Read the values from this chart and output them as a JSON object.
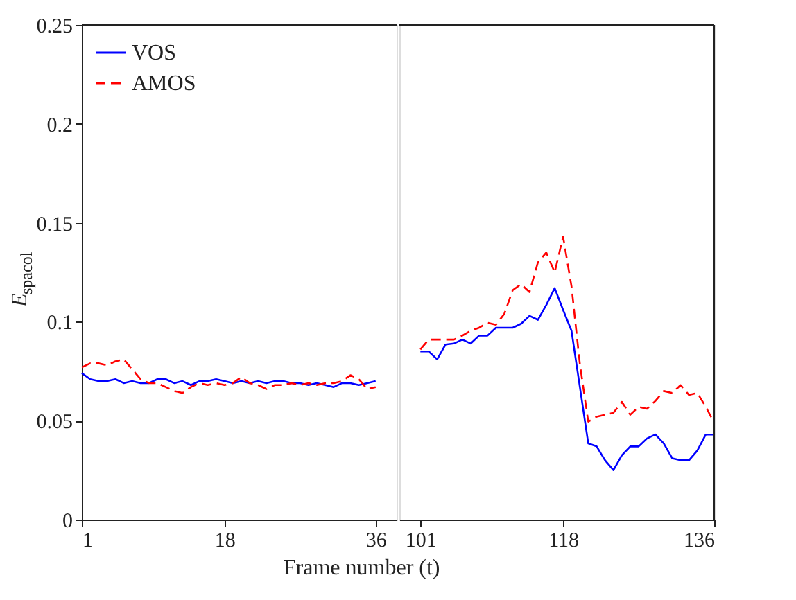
{
  "chart_data": [
    {
      "type": "line",
      "ylabel": "E$_{spacol}$",
      "xlabel": "Frame number (t)",
      "x": [
        1,
        2,
        3,
        4,
        5,
        6,
        7,
        8,
        9,
        10,
        11,
        12,
        13,
        14,
        15,
        16,
        17,
        18,
        19,
        20,
        21,
        22,
        23,
        24,
        25,
        26,
        27,
        28,
        29,
        30,
        31,
        32,
        33,
        34,
        35,
        36
      ],
      "xlim": [
        1,
        38.5
      ],
      "xticks": [
        1,
        18,
        36
      ],
      "ylim": [
        0,
        0.25
      ],
      "yticks": [
        0,
        0.05,
        0.1,
        0.15,
        0.2,
        0.25
      ],
      "grid": false,
      "legend": "top left",
      "series": [
        {
          "name": "VOS",
          "color": "#0000ff",
          "line_style": "solid",
          "values": [
            0.074,
            0.071,
            0.07,
            0.07,
            0.071,
            0.069,
            0.07,
            0.069,
            0.069,
            0.071,
            0.071,
            0.069,
            0.07,
            0.068,
            0.07,
            0.07,
            0.071,
            0.07,
            0.069,
            0.07,
            0.069,
            0.07,
            0.069,
            0.07,
            0.07,
            0.069,
            0.069,
            0.068,
            0.069,
            0.068,
            0.067,
            0.069,
            0.069,
            0.068,
            0.069,
            0.07
          ]
        },
        {
          "name": "AMOS",
          "color": "#ff0000",
          "line_style": "dashed",
          "values": [
            0.077,
            0.079,
            0.079,
            0.078,
            0.08,
            0.081,
            0.076,
            0.071,
            0.069,
            0.069,
            0.067,
            0.065,
            0.064,
            0.067,
            0.069,
            0.068,
            0.069,
            0.068,
            0.069,
            0.072,
            0.069,
            0.068,
            0.066,
            0.068,
            0.068,
            0.069,
            0.068,
            0.069,
            0.068,
            0.069,
            0.069,
            0.07,
            0.073,
            0.071,
            0.066,
            0.067
          ]
        }
      ]
    },
    {
      "type": "line",
      "x": [
        101,
        102,
        103,
        104,
        105,
        106,
        107,
        108,
        109,
        110,
        111,
        112,
        113,
        114,
        115,
        116,
        117,
        118,
        119,
        120,
        121,
        122,
        123,
        124,
        125,
        126,
        127,
        128,
        129,
        130,
        131,
        132,
        133,
        134,
        135,
        136
      ],
      "xlim": [
        98.5,
        136
      ],
      "xticks": [
        101,
        118,
        136
      ],
      "ylim": [
        0,
        0.25
      ],
      "grid": false,
      "legend": false,
      "tick_labels": "x",
      "series": [
        {
          "color": "#0000ff",
          "line_style": "solid",
          "values": [
            0.085,
            0.085,
            0.081,
            0.0885,
            0.089,
            0.091,
            0.089,
            0.093,
            0.093,
            0.097,
            0.097,
            0.097,
            0.099,
            0.103,
            0.101,
            0.1085,
            0.117,
            0.106,
            0.0955,
            0.067,
            0.0385,
            0.037,
            0.03,
            0.025,
            0.0325,
            0.037,
            0.037,
            0.041,
            0.043,
            0.0385,
            0.031,
            0.03,
            0.03,
            0.035,
            0.043,
            0.043
          ]
        },
        {
          "color": "#ff0000",
          "line_style": "dashed",
          "values": [
            0.086,
            0.091,
            0.091,
            0.091,
            0.091,
            0.093,
            0.0955,
            0.097,
            0.0995,
            0.0985,
            0.104,
            0.116,
            0.119,
            0.115,
            0.13,
            0.135,
            0.125,
            0.143,
            0.118,
            0.0786,
            0.0495,
            0.052,
            0.053,
            0.054,
            0.0595,
            0.053,
            0.057,
            0.056,
            0.06,
            0.065,
            0.064,
            0.068,
            0.063,
            0.064,
            0.057,
            0.049
          ]
        }
      ]
    }
  ]
}
